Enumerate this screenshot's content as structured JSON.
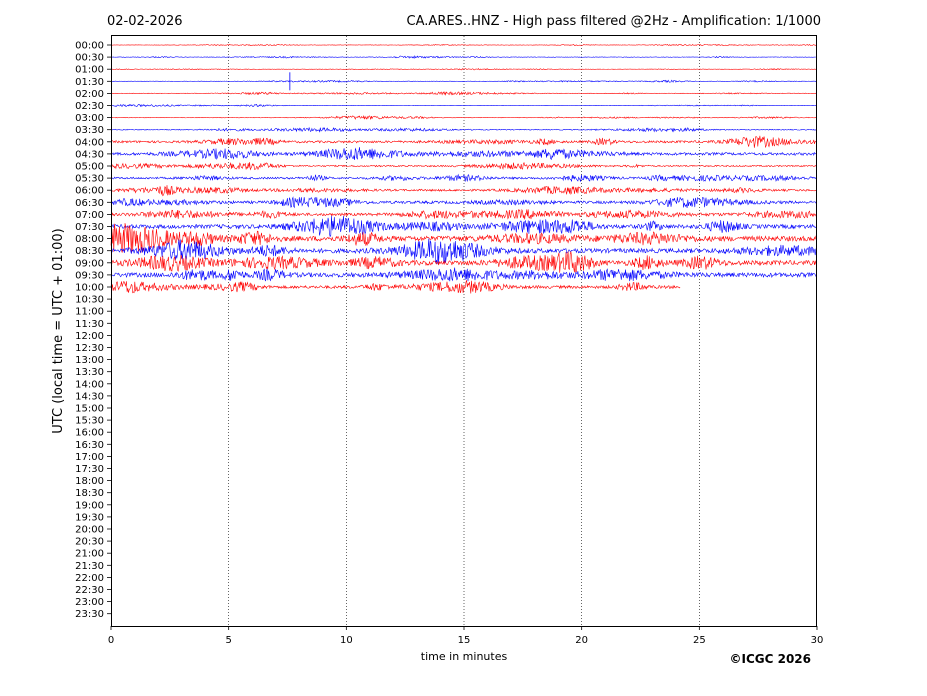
{
  "header": {
    "date": "02-02-2026",
    "title": "CA.ARES..HNZ - High pass filtered @2Hz - Amplification: 1/1000"
  },
  "credit": "©ICGC 2026",
  "chart_data": {
    "type": "line",
    "title": "CA.ARES..HNZ - High pass filtered @2Hz - Amplification: 1/1000",
    "xlabel": "time in minutes",
    "ylabel": "UTC (local time = UTC + 01:00)",
    "xlim": [
      0,
      30
    ],
    "x_ticks": [
      "0",
      "5",
      "10",
      "15",
      "20",
      "25",
      "30"
    ],
    "vertical_gridlines_at": [
      5,
      10,
      15,
      20,
      25
    ],
    "grid": "vertical dotted",
    "legend": "none",
    "row_labels": [
      "00:00",
      "00:30",
      "01:00",
      "01:30",
      "02:00",
      "02:30",
      "03:00",
      "03:30",
      "04:00",
      "04:30",
      "05:00",
      "05:30",
      "06:00",
      "06:30",
      "07:00",
      "07:30",
      "08:00",
      "08:30",
      "09:00",
      "09:30",
      "10:00",
      "10:30",
      "11:00",
      "11:30",
      "12:00",
      "12:30",
      "13:00",
      "13:30",
      "14:00",
      "14:30",
      "15:00",
      "15:30",
      "16:00",
      "16:30",
      "17:00",
      "17:30",
      "18:00",
      "18:30",
      "19:00",
      "19:30",
      "20:00",
      "20:30",
      "21:00",
      "21:30",
      "22:00",
      "22:30",
      "23:00",
      "23:30"
    ],
    "colors": {
      "even_rows": "#ff0000",
      "odd_rows": "#0000ff"
    },
    "series": [
      {
        "row": "00:00",
        "amplitude": 0.3,
        "end_minute": 30
      },
      {
        "row": "00:30",
        "amplitude": 0.4,
        "end_minute": 30
      },
      {
        "row": "01:00",
        "amplitude": 0.3,
        "end_minute": 30
      },
      {
        "row": "01:30",
        "amplitude": 0.4,
        "end_minute": 30,
        "spike_minute": 7.6
      },
      {
        "row": "02:00",
        "amplitude": 0.5,
        "end_minute": 30
      },
      {
        "row": "02:30",
        "amplitude": 0.4,
        "end_minute": 30
      },
      {
        "row": "03:00",
        "amplitude": 0.5,
        "end_minute": 30
      },
      {
        "row": "03:30",
        "amplitude": 0.8,
        "end_minute": 30
      },
      {
        "row": "04:00",
        "amplitude": 2.0,
        "end_minute": 30
      },
      {
        "row": "04:30",
        "amplitude": 2.4,
        "end_minute": 30
      },
      {
        "row": "05:00",
        "amplitude": 1.3,
        "end_minute": 30
      },
      {
        "row": "05:30",
        "amplitude": 1.8,
        "end_minute": 30
      },
      {
        "row": "06:00",
        "amplitude": 1.8,
        "end_minute": 30
      },
      {
        "row": "06:30",
        "amplitude": 2.4,
        "end_minute": 30
      },
      {
        "row": "07:00",
        "amplitude": 2.4,
        "end_minute": 30
      },
      {
        "row": "07:30",
        "amplitude": 3.6,
        "end_minute": 30
      },
      {
        "row": "08:00",
        "amplitude": 4.6,
        "end_minute": 30
      },
      {
        "row": "08:30",
        "amplitude": 4.0,
        "end_minute": 30
      },
      {
        "row": "09:00",
        "amplitude": 4.2,
        "end_minute": 30
      },
      {
        "row": "09:30",
        "amplitude": 4.0,
        "end_minute": 30
      },
      {
        "row": "10:00",
        "amplitude": 2.6,
        "end_minute": 24.2
      }
    ]
  }
}
